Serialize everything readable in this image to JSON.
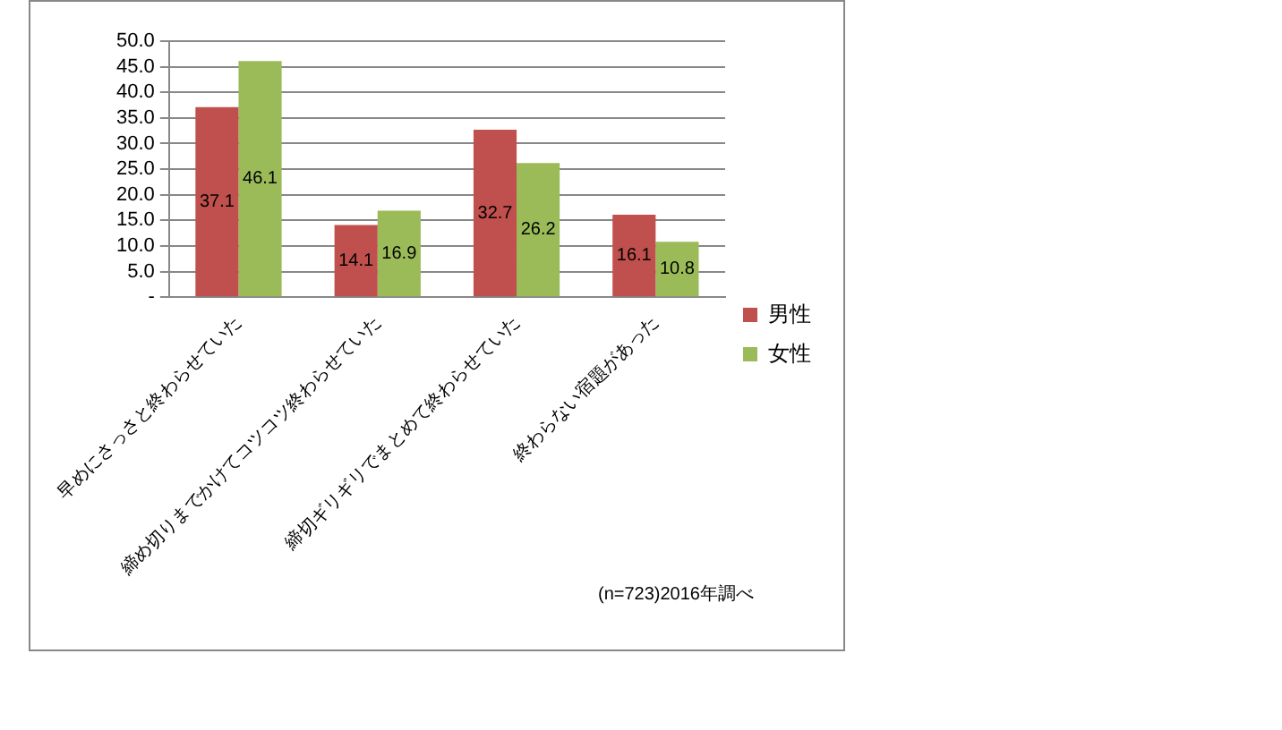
{
  "chart_data": {
    "type": "bar",
    "categories": [
      "早めにさっさと終わらせていた",
      "締め切りまでかけてコツコツ終わらせていた",
      "締切ギリギリでまとめて終わらせていた",
      "終わらない宿題があった"
    ],
    "series": [
      {
        "name": "男性",
        "color": "#c0504d",
        "values": [
          37.1,
          14.1,
          32.7,
          16.1
        ]
      },
      {
        "name": "女性",
        "color": "#9bbb59",
        "values": [
          46.1,
          16.9,
          26.2,
          10.8
        ]
      }
    ],
    "ylim": [
      0,
      50
    ],
    "yticks": [
      {
        "value": 0,
        "label": "-"
      },
      {
        "value": 5,
        "label": "5.0"
      },
      {
        "value": 10,
        "label": "10.0"
      },
      {
        "value": 15,
        "label": "15.0"
      },
      {
        "value": 20,
        "label": "20.0"
      },
      {
        "value": 25,
        "label": "25.0"
      },
      {
        "value": 30,
        "label": "30.0"
      },
      {
        "value": 35,
        "label": "35.0"
      },
      {
        "value": 40,
        "label": "40.0"
      },
      {
        "value": 45,
        "label": "45.0"
      },
      {
        "value": 50,
        "label": "50.0"
      }
    ],
    "grid": "y",
    "legend": "right",
    "data_labels": true,
    "annotations": [
      "(n=723)2016年調べ"
    ]
  }
}
